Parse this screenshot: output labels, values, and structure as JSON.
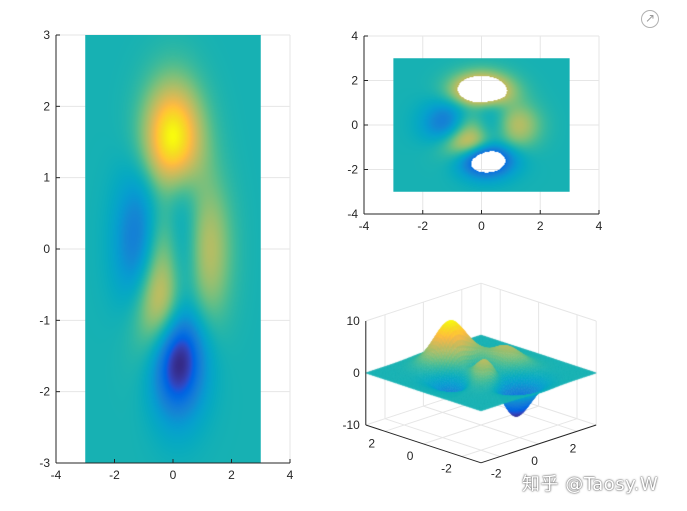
{
  "window": {
    "export_icon": "arrow-up-right-icon"
  },
  "watermark": {
    "text": "知乎 @Taosy.W"
  },
  "colors": {
    "colormap": "parula",
    "background": "#ffffff",
    "axis": "#262626",
    "grid": "#e6e6e6"
  },
  "chart_data": [
    {
      "type": "heatmap",
      "view": "top",
      "surface": "peaks",
      "domain_x": [
        -3,
        3
      ],
      "domain_y": [
        -3,
        3
      ],
      "xlim": [
        -4,
        4
      ],
      "ylim": [
        -3,
        3
      ],
      "xticks": [
        "-4",
        "-2",
        "0",
        "2",
        "4"
      ],
      "yticks": [
        "3",
        "2",
        "1",
        "0",
        "-1",
        "-2",
        "-3"
      ],
      "xtick_values": [
        -4,
        -2,
        0,
        2,
        4
      ],
      "ytick_values": [
        3,
        2,
        1,
        0,
        -1,
        -2,
        -3
      ],
      "grid": true,
      "title": "",
      "xlabel": "",
      "ylabel": ""
    },
    {
      "type": "heatmap",
      "view": "top",
      "surface": "peaks",
      "masked": "z outside [-4, 4] shown as holes",
      "domain_x": [
        -3,
        3
      ],
      "domain_y": [
        -3,
        3
      ],
      "xlim": [
        -4,
        4
      ],
      "ylim": [
        -4,
        4
      ],
      "xticks": [
        "-4",
        "-2",
        "0",
        "2",
        "4"
      ],
      "yticks": [
        "4",
        "2",
        "0",
        "-2",
        "-4"
      ],
      "xtick_values": [
        -4,
        -2,
        0,
        2,
        4
      ],
      "ytick_values": [
        4,
        2,
        0,
        -2,
        -4
      ],
      "grid": true,
      "title": "",
      "xlabel": "",
      "ylabel": ""
    },
    {
      "type": "surface3d",
      "view": "3d",
      "surface": "peaks",
      "zlim": [
        -10,
        10
      ],
      "zticks": [
        "10",
        "0",
        "-10"
      ],
      "xticks": [
        "-2",
        "0",
        "2"
      ],
      "yticks": [
        "2",
        "0",
        "-2"
      ],
      "grid": true,
      "title": "",
      "xlabel": "",
      "ylabel": "",
      "zlabel": ""
    }
  ]
}
